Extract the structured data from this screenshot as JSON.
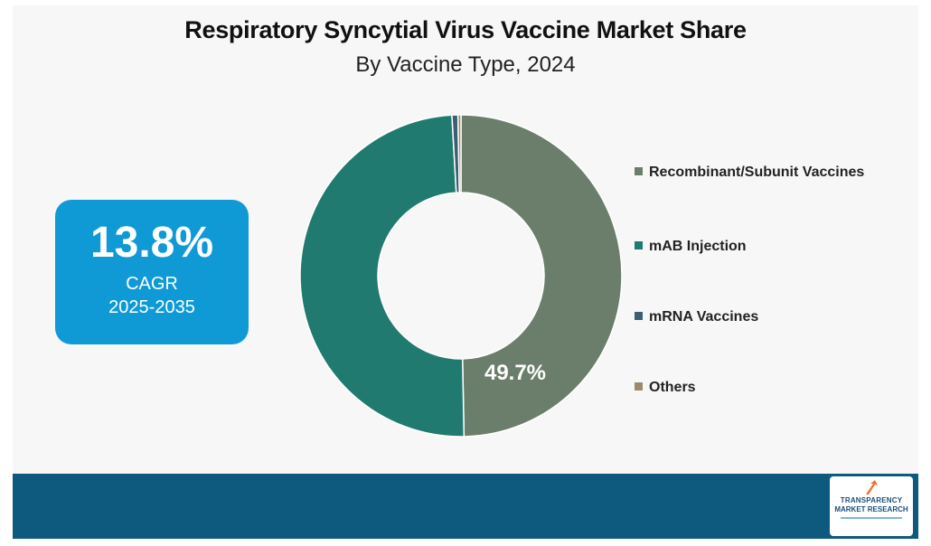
{
  "header": {
    "title": "Respiratory Syncytial Virus Vaccine Market Share",
    "subtitle": "By Vaccine Type, 2024"
  },
  "cagr": {
    "value": "13.8%",
    "label": "CAGR",
    "period": "2025-2035"
  },
  "chart_data": {
    "type": "pie",
    "variant": "donut",
    "title": "Respiratory Syncytial Virus Vaccine Market Share",
    "subtitle": "By Vaccine Type, 2024",
    "categories": [
      "Recombinant/Subunit Vaccines",
      "mAB Injection",
      "mRNA Vaccines",
      "Others"
    ],
    "values": [
      49.7,
      49.4,
      0.6,
      0.3
    ],
    "colors": [
      "#6b7e6b",
      "#217a70",
      "#3d5f72",
      "#9b8b6c"
    ],
    "data_labels": [
      "49.7%",
      "",
      "",
      ""
    ],
    "legend_position": "right"
  },
  "brand": {
    "logo_line1": "TRANSPARENCY",
    "logo_line2": "MARKET RESEARCH",
    "colors": {
      "footer": "#0d5a7e",
      "cagr_box": "#0f9ad6",
      "logo_arrow": "#f0712a"
    }
  }
}
